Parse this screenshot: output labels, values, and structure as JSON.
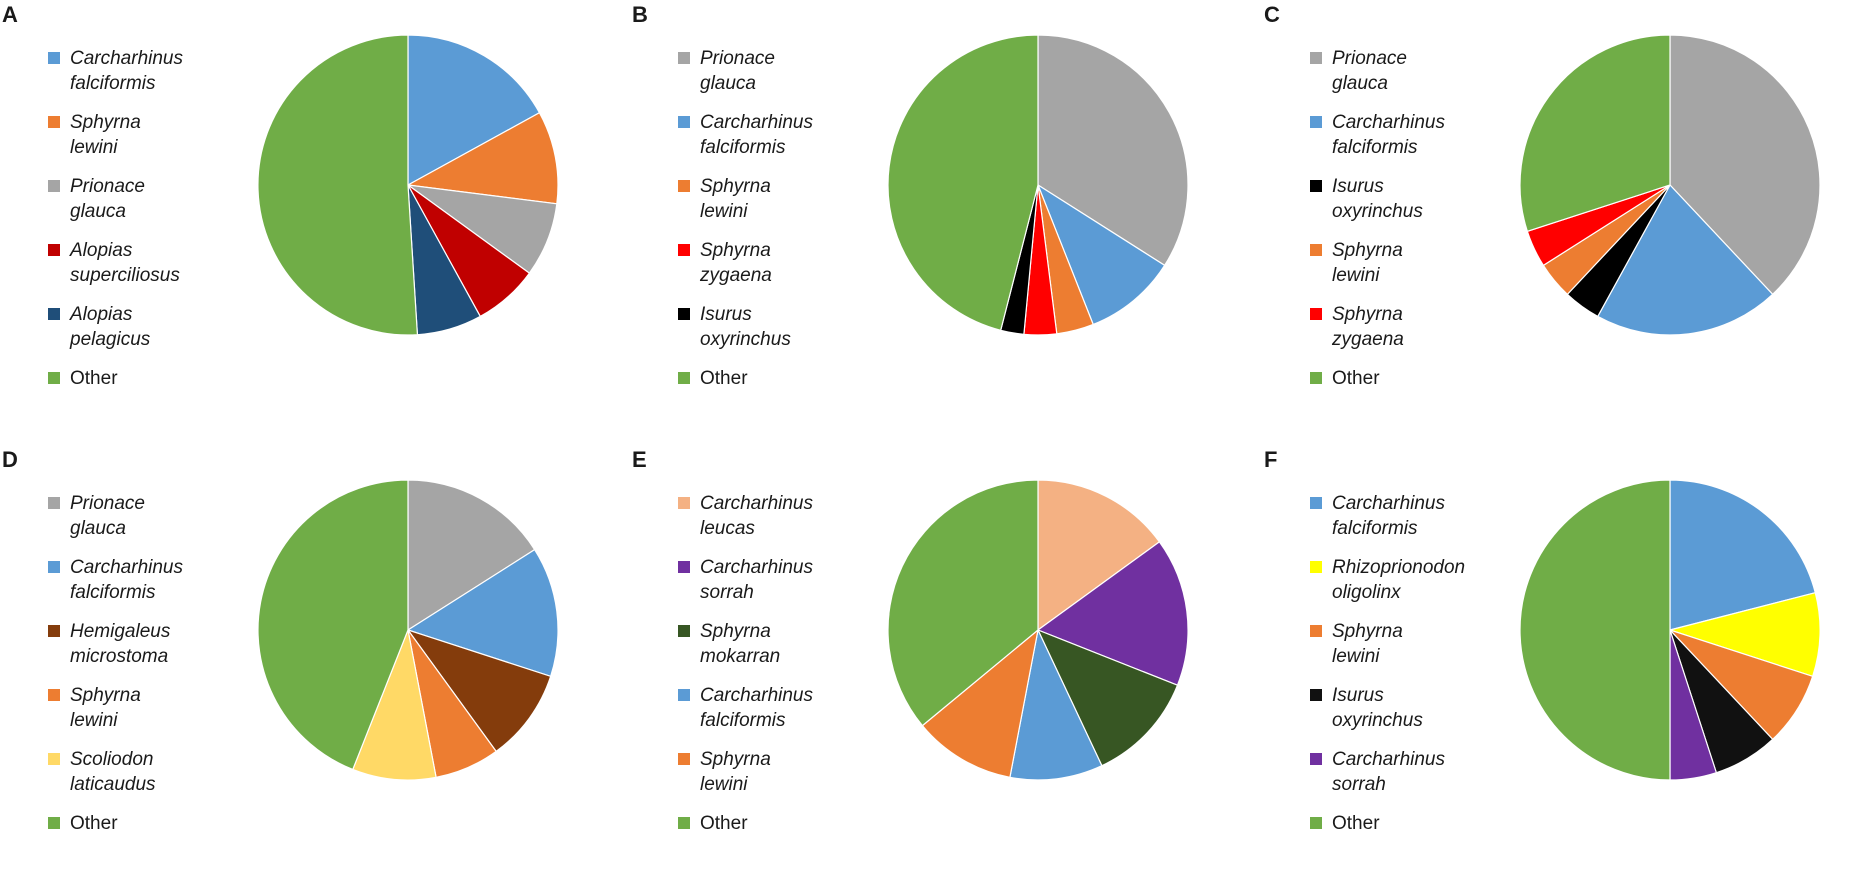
{
  "chart_data": [
    {
      "type": "pie",
      "panel": "A",
      "slices": [
        {
          "label": "Carcharhinus\nfalciformis",
          "value": 17,
          "color": "#5b9bd5"
        },
        {
          "label": "Sphyrna\nlewini",
          "value": 10,
          "color": "#ed7d31"
        },
        {
          "label": "Prionace\nglauca",
          "value": 8,
          "color": "#a5a5a5"
        },
        {
          "label": "Alopias\nsuperciliosus",
          "value": 7,
          "color": "#c00000"
        },
        {
          "label": "Alopias\npelagicus",
          "value": 7,
          "color": "#1f4e79"
        },
        {
          "label": "Other",
          "value": 51,
          "color": "#70ad47"
        }
      ]
    },
    {
      "type": "pie",
      "panel": "B",
      "slices": [
        {
          "label": "Prionace\nglauca",
          "value": 34,
          "color": "#a5a5a5"
        },
        {
          "label": "Carcharhinus\nfalciformis",
          "value": 10,
          "color": "#5b9bd5"
        },
        {
          "label": "Sphyrna\nlewini",
          "value": 4,
          "color": "#ed7d31"
        },
        {
          "label": "Sphyrna\nzygaena",
          "value": 3.5,
          "color": "#ff0000"
        },
        {
          "label": "Isurus\noxyrinchus",
          "value": 2.5,
          "color": "#000000"
        },
        {
          "label": "Other",
          "value": 46,
          "color": "#70ad47"
        }
      ]
    },
    {
      "type": "pie",
      "panel": "C",
      "slices": [
        {
          "label": "Prionace\nglauca",
          "value": 38,
          "color": "#a5a5a5"
        },
        {
          "label": "Carcharhinus\nfalciformis",
          "value": 20,
          "color": "#5b9bd5"
        },
        {
          "label": "Isurus\noxyrinchus",
          "value": 4,
          "color": "#000000"
        },
        {
          "label": "Sphyrna\nlewini",
          "value": 4,
          "color": "#ed7d31"
        },
        {
          "label": "Sphyrna\nzygaena",
          "value": 4,
          "color": "#ff0000"
        },
        {
          "label": "Other",
          "value": 30,
          "color": "#70ad47"
        }
      ]
    },
    {
      "type": "pie",
      "panel": "D",
      "slices": [
        {
          "label": "Prionace\nglauca",
          "value": 16,
          "color": "#a5a5a5"
        },
        {
          "label": "Carcharhinus\nfalciformis",
          "value": 14,
          "color": "#5b9bd5"
        },
        {
          "label": "Hemigaleus\nmicrostoma",
          "value": 10,
          "color": "#843c0c"
        },
        {
          "label": "Sphyrna\nlewini",
          "value": 7,
          "color": "#ed7d31"
        },
        {
          "label": "Scoliodon\nlaticaudus",
          "value": 9,
          "color": "#ffd966"
        },
        {
          "label": "Other",
          "value": 44,
          "color": "#70ad47"
        }
      ]
    },
    {
      "type": "pie",
      "panel": "E",
      "slices": [
        {
          "label": "Carcharhinus\nleucas",
          "value": 15,
          "color": "#f4b183"
        },
        {
          "label": "Carcharhinus\nsorrah",
          "value": 16,
          "color": "#7030a0"
        },
        {
          "label": "Sphyrna\nmokarran",
          "value": 12,
          "color": "#375623"
        },
        {
          "label": "Carcharhinus\nfalciformis",
          "value": 10,
          "color": "#5b9bd5"
        },
        {
          "label": "Sphyrna\nlewini",
          "value": 11,
          "color": "#ed7d31"
        },
        {
          "label": "Other",
          "value": 36,
          "color": "#70ad47"
        }
      ]
    },
    {
      "type": "pie",
      "panel": "F",
      "slices": [
        {
          "label": "Carcharhinus\nfalciformis",
          "value": 21,
          "color": "#5b9bd5"
        },
        {
          "label": "Rhizoprionodon\noligolinx",
          "value": 9,
          "color": "#ffff00"
        },
        {
          "label": "Sphyrna\nlewini",
          "value": 8,
          "color": "#ed7d31"
        },
        {
          "label": "Isurus\noxyrinchus",
          "value": 7,
          "color": "#111111"
        },
        {
          "label": "Carcharhinus\nsorrah",
          "value": 5,
          "color": "#7030a0"
        },
        {
          "label": "Other",
          "value": 50,
          "color": "#70ad47"
        }
      ]
    }
  ]
}
